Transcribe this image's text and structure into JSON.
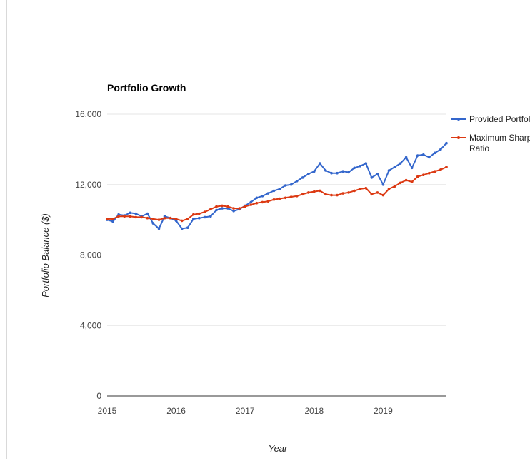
{
  "chart_data": {
    "type": "line",
    "title": "Portfolio Growth",
    "xlabel": "Year",
    "ylabel": "Portfolio Balance ($)",
    "x_ticks": [
      "2015",
      "2016",
      "2017",
      "2018",
      "2019"
    ],
    "y_ticks": [
      "0",
      "4,000",
      "8,000",
      "12,000",
      "16,000"
    ],
    "ylim": [
      0,
      16000
    ],
    "xlim": [
      2015.0,
      2019.917
    ],
    "grid": true,
    "legend_position": "right",
    "series": [
      {
        "name": "Provided Portfolio",
        "color": "#3366cc",
        "values": [
          10000,
          9900,
          10300,
          10250,
          10400,
          10350,
          10200,
          10350,
          9800,
          9500,
          10200,
          10100,
          9950,
          9500,
          9550,
          10050,
          10100,
          10150,
          10200,
          10550,
          10650,
          10650,
          10500,
          10600,
          10800,
          11000,
          11250,
          11350,
          11500,
          11650,
          11750,
          11950,
          12000,
          12200,
          12400,
          12600,
          12750,
          13200,
          12800,
          12650,
          12650,
          12750,
          12700,
          12950,
          13050,
          13200,
          12400,
          12600,
          12000,
          12800,
          13000,
          13200,
          13550,
          12950,
          13650,
          13700,
          13550,
          13800,
          14000,
          14350
        ]
      },
      {
        "name": "Maximum Sharpe Ratio",
        "color": "#dc3912",
        "values": [
          10050,
          10050,
          10200,
          10200,
          10200,
          10150,
          10150,
          10100,
          10050,
          10000,
          10100,
          10100,
          10050,
          9950,
          10050,
          10300,
          10350,
          10450,
          10600,
          10750,
          10800,
          10750,
          10650,
          10650,
          10750,
          10850,
          10950,
          11000,
          11050,
          11150,
          11200,
          11250,
          11300,
          11350,
          11450,
          11550,
          11600,
          11650,
          11450,
          11400,
          11400,
          11500,
          11550,
          11650,
          11750,
          11800,
          11450,
          11550,
          11400,
          11750,
          11900,
          12100,
          12250,
          12150,
          12450,
          12550,
          12650,
          12750,
          12850,
          13000
        ]
      }
    ]
  },
  "legend": {
    "items": [
      {
        "lines": [
          "Provided Portfolio"
        ]
      },
      {
        "lines": [
          "Maximum Sharpe",
          "Ratio"
        ]
      }
    ]
  }
}
